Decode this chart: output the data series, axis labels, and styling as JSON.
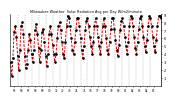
{
  "title": "Milwaukee Weather  Solar Radiation Avg per Day W/m2/minute",
  "line_color": "#cc0000",
  "dot_color": "#000000",
  "bg_color": "#ffffff",
  "grid_color": "#999999",
  "ylim": [
    0,
    9
  ],
  "yticks": [
    1,
    2,
    3,
    4,
    5,
    6,
    7,
    8,
    9
  ],
  "ytick_labels": [
    "1",
    "2",
    "3",
    "4",
    "5",
    "6",
    "7",
    "8",
    "9"
  ],
  "x_labels": [
    "65",
    "66",
    "67",
    "68",
    "69",
    "70",
    "71",
    "72",
    "73",
    "74",
    "75",
    "76",
    "77",
    "78",
    "79",
    "80",
    "81",
    "82",
    "83",
    "84",
    "85"
  ],
  "values": [
    3.0,
    1.2,
    3.5,
    6.8,
    7.5,
    6.2,
    3.8,
    2.0,
    4.5,
    7.5,
    8.0,
    6.5,
    3.8,
    2.2,
    2.8,
    4.5,
    6.5,
    5.8,
    4.0,
    3.0,
    4.5,
    7.0,
    7.8,
    6.5,
    4.8,
    3.0,
    4.5,
    6.8,
    7.2,
    5.5,
    3.8,
    2.5,
    4.0,
    6.5,
    7.5,
    6.5,
    5.2,
    4.0,
    3.0,
    4.0,
    6.0,
    7.5,
    8.0,
    7.0,
    5.5,
    4.0,
    3.5,
    5.5,
    7.5,
    8.8,
    8.5,
    7.5,
    6.0,
    4.5,
    4.0,
    5.5,
    7.0,
    8.5,
    8.5,
    7.5,
    6.0,
    4.5,
    3.5,
    5.0,
    7.0,
    8.2,
    8.5,
    7.5,
    6.2,
    5.0,
    4.0,
    5.5,
    7.5,
    8.5,
    7.5,
    6.2,
    5.0,
    4.0,
    5.5,
    7.5,
    8.5,
    7.5,
    6.0,
    4.5,
    4.0,
    5.5,
    7.2,
    8.5,
    8.5,
    7.2,
    5.8,
    4.5,
    3.8,
    5.2,
    7.0,
    8.2,
    8.5,
    7.5,
    6.2,
    5.0,
    4.0,
    5.5,
    7.5,
    8.8,
    8.5,
    7.5,
    6.2,
    4.8,
    4.0,
    5.5,
    7.2,
    8.5,
    8.8,
    7.5,
    6.2,
    5.0,
    4.2,
    5.8,
    7.5,
    8.8,
    8.5,
    7.5,
    6.2,
    5.0,
    4.2,
    5.8,
    7.5,
    8.8,
    8.8,
    8.5
  ],
  "n_per_year": 6
}
